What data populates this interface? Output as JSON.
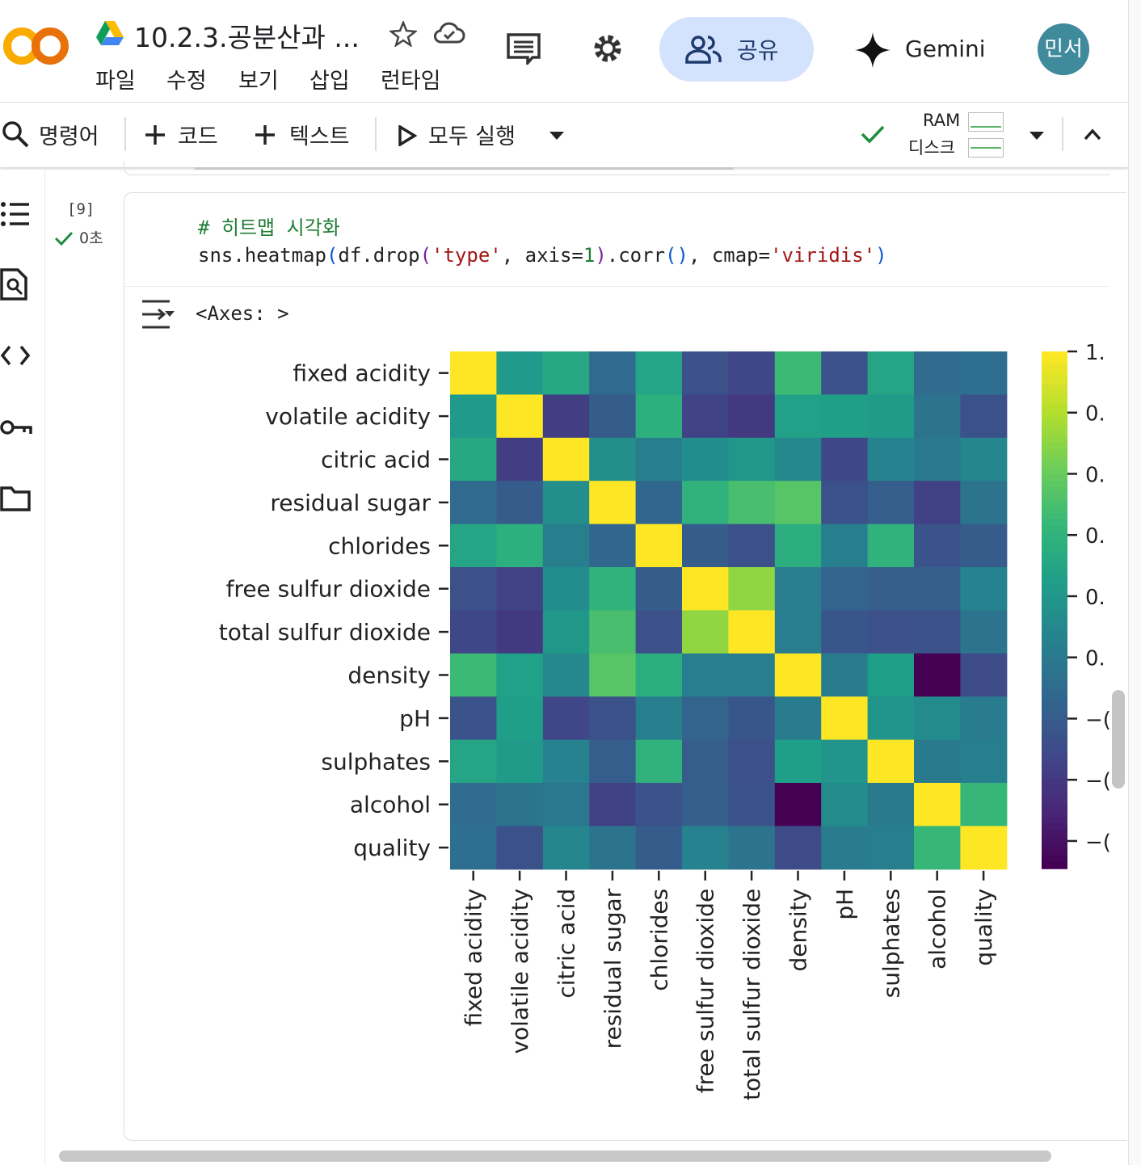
{
  "app": {
    "logo_text": "CO",
    "title": "10.2.3.공분산과 ...",
    "menu": [
      "파일",
      "수정",
      "보기",
      "삽입",
      "런타임"
    ],
    "share_label": "공유",
    "gemini_label": "Gemini",
    "avatar_text": "민서"
  },
  "toolbar": {
    "command_label": "명령어",
    "code_label": "코드",
    "text_label": "텍스트",
    "run_all_label": "모두 실행",
    "ram_label": "RAM",
    "disk_label": "디스크"
  },
  "cell": {
    "exec_count": "[9]",
    "exec_time": "0초",
    "code_comment": "# 히트맵 시각화",
    "code_parts": [
      {
        "t": "sns.heatmap",
        "c": "#202124"
      },
      {
        "t": "(",
        "c": "#0b57d0"
      },
      {
        "t": "df.drop",
        "c": "#202124"
      },
      {
        "t": "(",
        "c": "#7b1fa2"
      },
      {
        "t": "'type'",
        "c": "#a31515"
      },
      {
        "t": ", axis=",
        "c": "#202124"
      },
      {
        "t": "1",
        "c": "#1e7e34"
      },
      {
        "t": ")",
        "c": "#7b1fa2"
      },
      {
        "t": ".corr",
        "c": "#202124"
      },
      {
        "t": "()",
        "c": "#0b57d0"
      },
      {
        "t": ", cmap=",
        "c": "#202124"
      },
      {
        "t": "'viridis'",
        "c": "#a31515"
      },
      {
        "t": ")",
        "c": "#0b57d0"
      }
    ],
    "output_text": "<Axes: >"
  },
  "chart_data": {
    "type": "heatmap",
    "colormap": "viridis",
    "labels": [
      "fixed acidity",
      "volatile acidity",
      "citric acid",
      "residual sugar",
      "chlorides",
      "free sulfur dioxide",
      "total sulfur dioxide",
      "density",
      "pH",
      "sulphates",
      "alcohol",
      "quality"
    ],
    "matrix": [
      [
        1.0,
        0.22,
        0.32,
        -0.11,
        0.3,
        -0.28,
        -0.33,
        0.46,
        -0.25,
        0.3,
        -0.1,
        -0.08
      ],
      [
        0.22,
        1.0,
        -0.38,
        -0.2,
        0.38,
        -0.35,
        -0.41,
        0.27,
        0.26,
        0.23,
        -0.04,
        -0.27
      ],
      [
        0.32,
        -0.38,
        1.0,
        0.14,
        0.04,
        0.13,
        0.2,
        0.1,
        -0.33,
        0.06,
        -0.01,
        0.09
      ],
      [
        -0.11,
        -0.2,
        0.14,
        1.0,
        -0.13,
        0.4,
        0.5,
        0.55,
        -0.27,
        -0.19,
        -0.36,
        -0.04
      ],
      [
        0.3,
        0.38,
        0.04,
        -0.13,
        1.0,
        -0.2,
        -0.28,
        0.36,
        0.04,
        0.4,
        -0.26,
        -0.2
      ],
      [
        -0.28,
        -0.35,
        0.13,
        0.4,
        -0.2,
        1.0,
        0.72,
        0.03,
        -0.15,
        -0.19,
        -0.18,
        0.06
      ],
      [
        -0.33,
        -0.41,
        0.2,
        0.5,
        -0.28,
        0.72,
        1.0,
        0.03,
        -0.24,
        -0.28,
        -0.27,
        -0.04
      ],
      [
        0.46,
        0.27,
        0.1,
        0.55,
        0.36,
        0.03,
        0.03,
        1.0,
        0.01,
        0.26,
        -0.69,
        -0.31
      ],
      [
        -0.25,
        0.26,
        -0.33,
        -0.27,
        0.04,
        -0.15,
        -0.24,
        0.01,
        1.0,
        0.19,
        0.12,
        0.02
      ],
      [
        0.3,
        0.23,
        0.06,
        -0.19,
        0.4,
        -0.19,
        -0.28,
        0.26,
        0.19,
        1.0,
        -0.0,
        0.04
      ],
      [
        -0.1,
        -0.04,
        -0.01,
        -0.36,
        -0.26,
        -0.18,
        -0.27,
        -0.69,
        0.12,
        -0.0,
        1.0,
        0.44
      ],
      [
        -0.08,
        -0.27,
        0.09,
        -0.04,
        -0.2,
        0.06,
        -0.04,
        -0.31,
        0.02,
        0.04,
        0.44,
        1.0
      ]
    ],
    "vmin": -0.69,
    "vmax": 1.0,
    "colorbar_ticks": [
      {
        "value": 1.0,
        "label": "1."
      },
      {
        "value": 0.8,
        "label": "0."
      },
      {
        "value": 0.6,
        "label": "0."
      },
      {
        "value": 0.4,
        "label": "0."
      },
      {
        "value": 0.2,
        "label": "0."
      },
      {
        "value": 0.0,
        "label": "0."
      },
      {
        "value": -0.2,
        "label": "−("
      },
      {
        "value": -0.4,
        "label": "−("
      },
      {
        "value": -0.6,
        "label": "−("
      }
    ]
  }
}
